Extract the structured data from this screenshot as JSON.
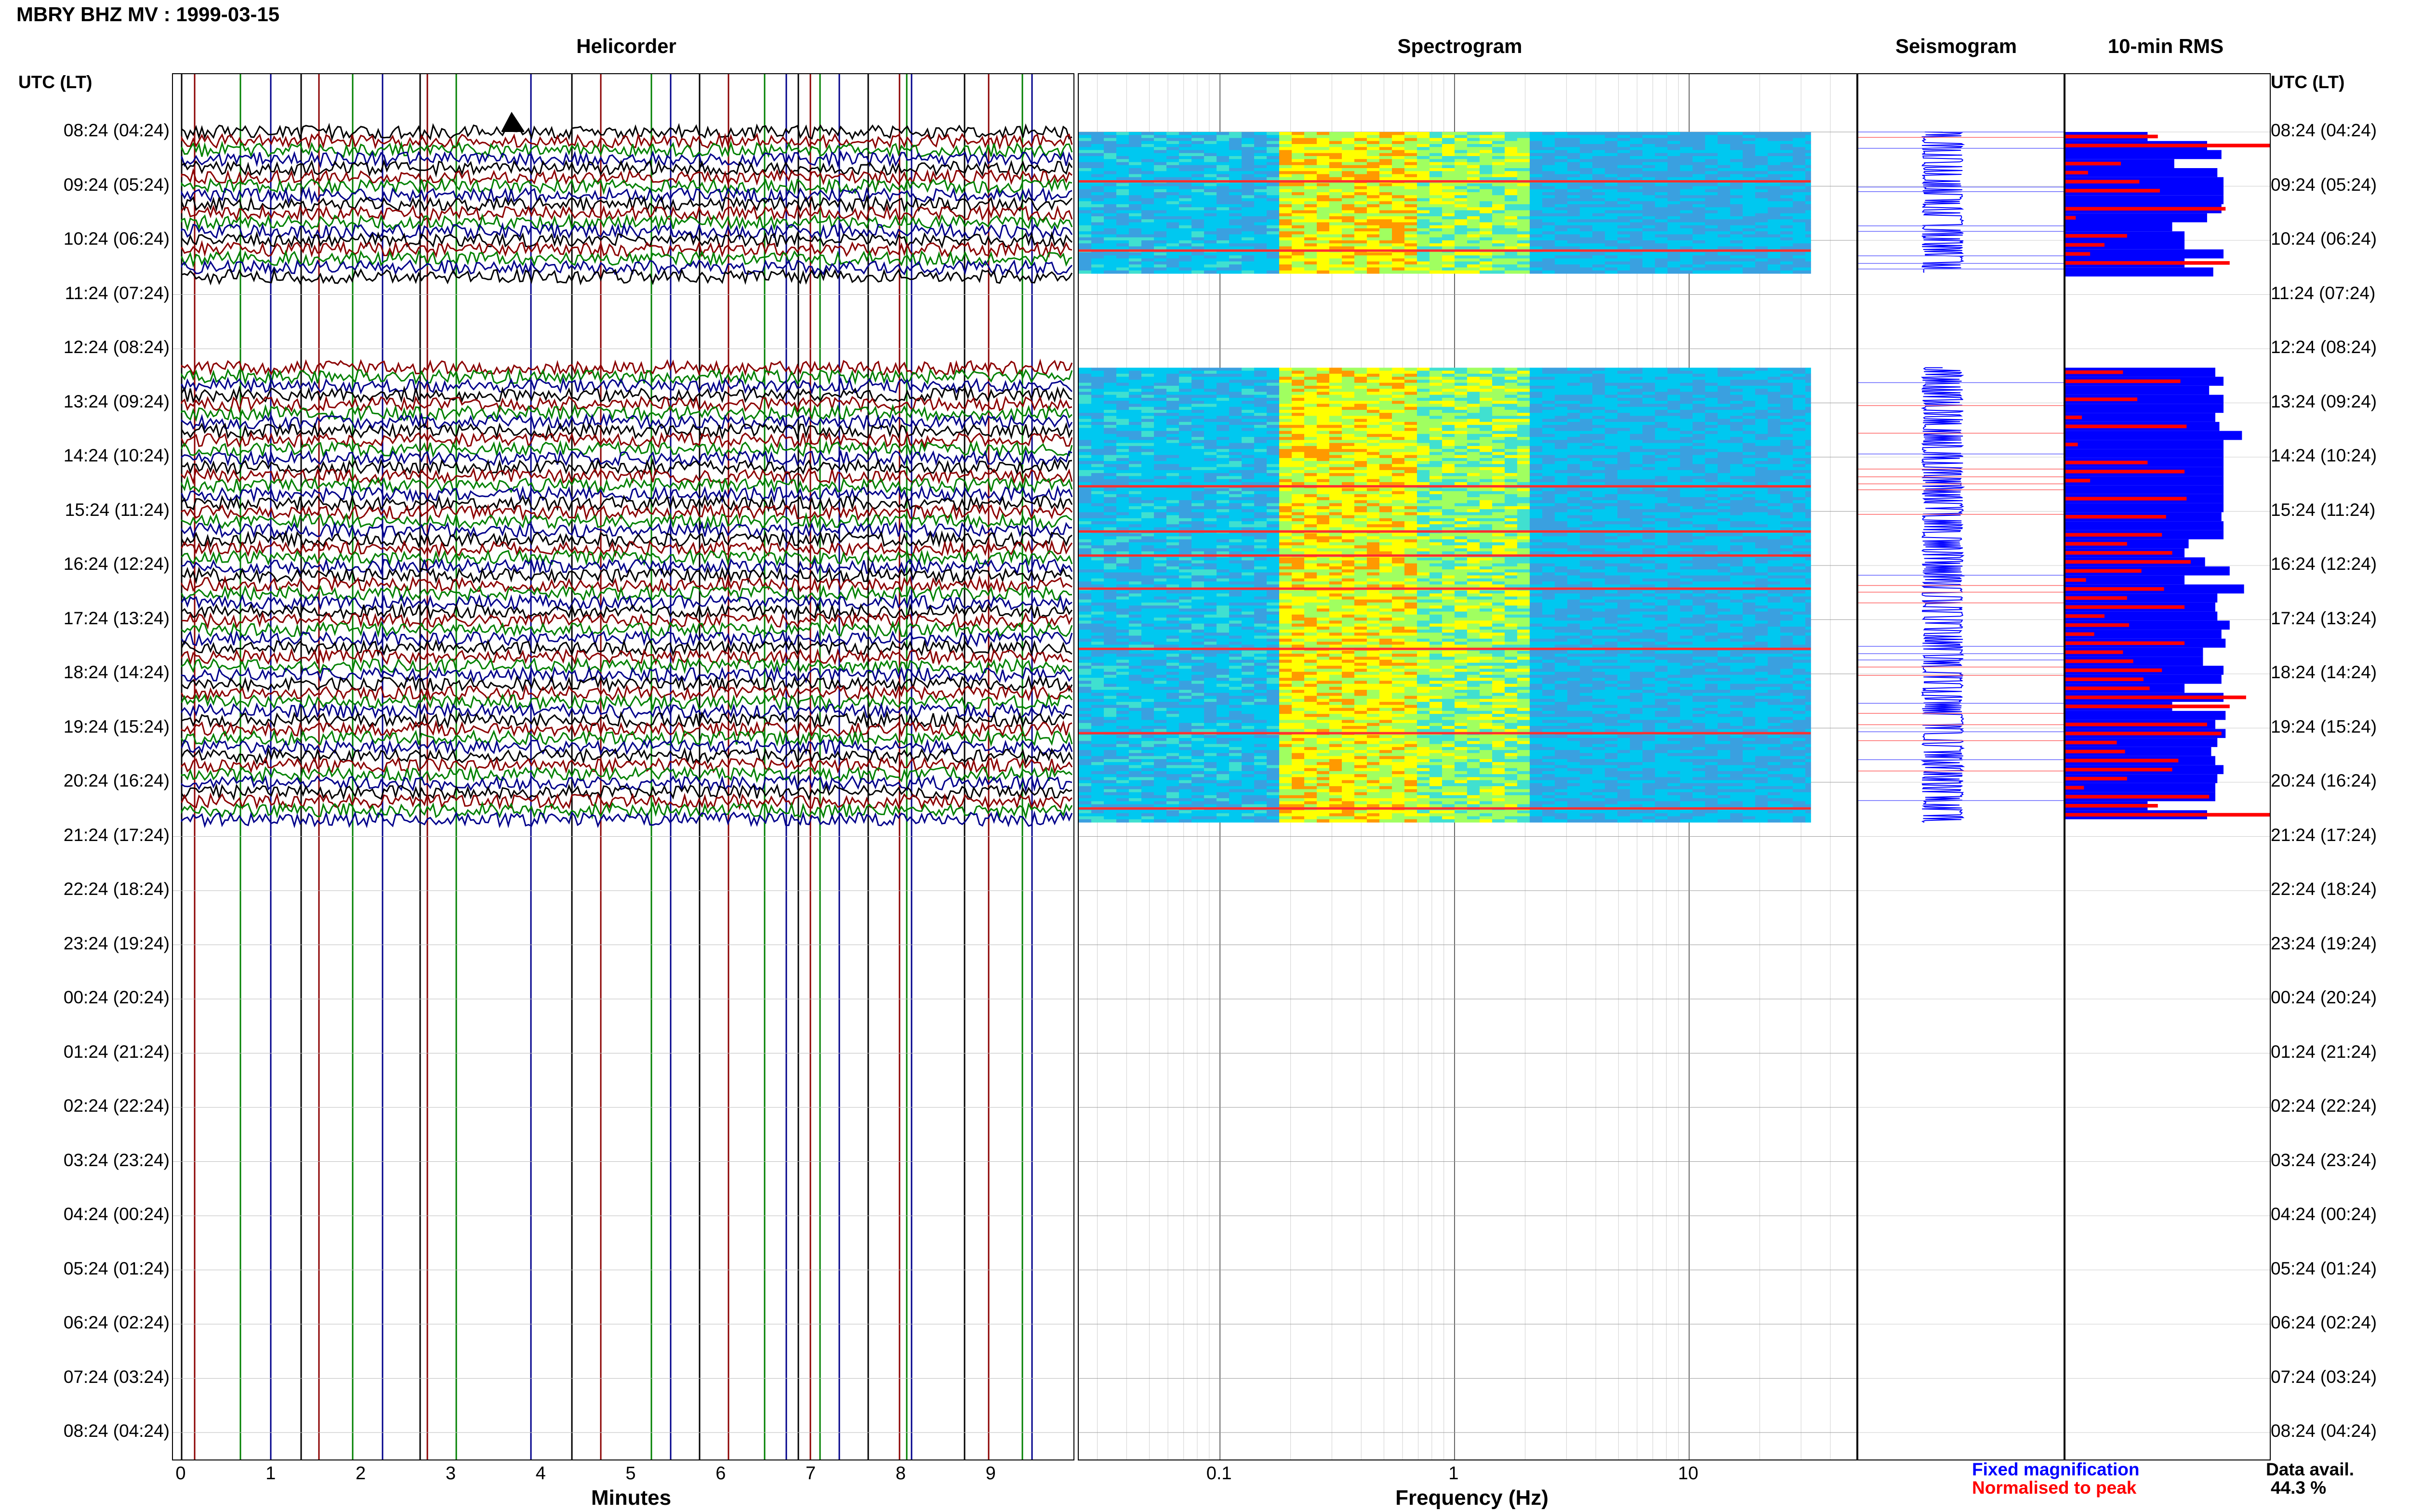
{
  "title": "MBRY BHZ MV : 1999-03-15",
  "panels": {
    "helicorder": "Helicorder",
    "spectrogram": "Spectrogram",
    "seismogram": "Seismogram",
    "rms": "10-min RMS"
  },
  "utc_header": "UTC (LT)",
  "rows": [
    "08:24 (04:24)",
    "09:24 (05:24)",
    "10:24 (06:24)",
    "11:24 (07:24)",
    "12:24 (08:24)",
    "13:24 (09:24)",
    "14:24 (10:24)",
    "15:24 (11:24)",
    "16:24 (12:24)",
    "17:24 (13:24)",
    "18:24 (14:24)",
    "19:24 (15:24)",
    "20:24 (16:24)",
    "21:24 (17:24)",
    "22:24 (18:24)",
    "23:24 (19:24)",
    "00:24 (20:24)",
    "01:24 (21:24)",
    "02:24 (22:24)",
    "03:24 (23:24)",
    "04:24 (00:24)",
    "05:24 (01:24)",
    "06:24 (02:24)",
    "07:24 (03:24)",
    "08:24 (04:24)"
  ],
  "helicorder_ticks": [
    "0",
    "1",
    "2",
    "3",
    "4",
    "5",
    "6",
    "7",
    "8",
    "9"
  ],
  "helicorder_xlabel": "Minutes",
  "spectrogram_ticks": [
    "0.1",
    "1",
    "10"
  ],
  "spectrogram_xlabel": "Frequency (Hz)",
  "legend": {
    "fixed": "Fixed magnification",
    "normalised": "Normalised to peak"
  },
  "data_avail": {
    "label": "Data avail.",
    "value": "44.3 %"
  },
  "colors": {
    "trace_black": "#000000",
    "trace_red": "#8b0000",
    "trace_green": "#008000",
    "trace_blue": "#00008b",
    "rms_fixed": "#0000ff",
    "rms_normalised": "#ff0000"
  },
  "chart_data": {
    "type": "heatmap",
    "station": "MBRY BHZ MV",
    "date": "1999-03-15",
    "rows_per_hour": 6,
    "row_minutes": 10,
    "data_segments_hours": [
      [
        0.0,
        2.6
      ],
      [
        4.35,
        12.75
      ]
    ],
    "helicorder_xlim_min": [
      0,
      10
    ],
    "spectrogram_xlim_hz": [
      0.025,
      40
    ],
    "spectrogram_scale": "log",
    "data_availability_pct": 44.3,
    "rms_fixed": [
      0.4,
      0.69,
      0.76,
      0.53,
      0.74,
      0.77,
      0.77,
      0.77,
      0.76,
      0.69,
      0.52,
      0.58,
      0.58,
      0.77,
      0.58,
      0.72,
      0.73,
      0.77,
      0.7,
      0.77,
      0.77,
      0.73,
      0.75,
      0.86,
      0.77,
      0.77,
      0.77,
      0.77,
      0.77,
      0.77,
      0.77,
      0.77,
      0.76,
      0.77,
      0.77,
      0.6,
      0.58,
      0.68,
      0.8,
      0.58,
      0.87,
      0.74,
      0.73,
      0.74,
      0.8,
      0.76,
      0.78,
      0.67,
      0.67,
      0.77,
      0.76,
      0.58,
      0.77,
      0.52,
      0.78,
      0.73,
      0.78,
      0.74,
      0.71,
      0.73,
      0.77,
      0.74,
      0.73,
      0.73
    ],
    "rms_normalised": [
      0.45,
      1.0,
      0.0,
      0.27,
      0.11,
      0.36,
      0.46,
      0.0,
      0.78,
      0.05,
      0.0,
      0.3,
      0.19,
      0.12,
      0.8,
      0.0,
      0.28,
      0.56,
      0.0,
      0.35,
      0.0,
      0.08,
      0.59,
      0.0,
      0.06,
      0.0,
      0.4,
      0.58,
      0.12,
      0.0,
      0.59,
      0.0,
      0.49,
      0.0,
      0.47,
      0.3,
      0.52,
      0.61,
      0.37,
      0.1,
      0.48,
      0.3,
      0.58,
      0.19,
      0.31,
      0.14,
      0.58,
      0.28,
      0.33,
      0.47,
      0.38,
      0.41,
      0.88,
      0.8,
      0.0,
      0.69,
      0.76,
      0.25,
      0.29,
      0.55,
      0.52,
      0.3,
      0.09,
      0.7
    ]
  }
}
